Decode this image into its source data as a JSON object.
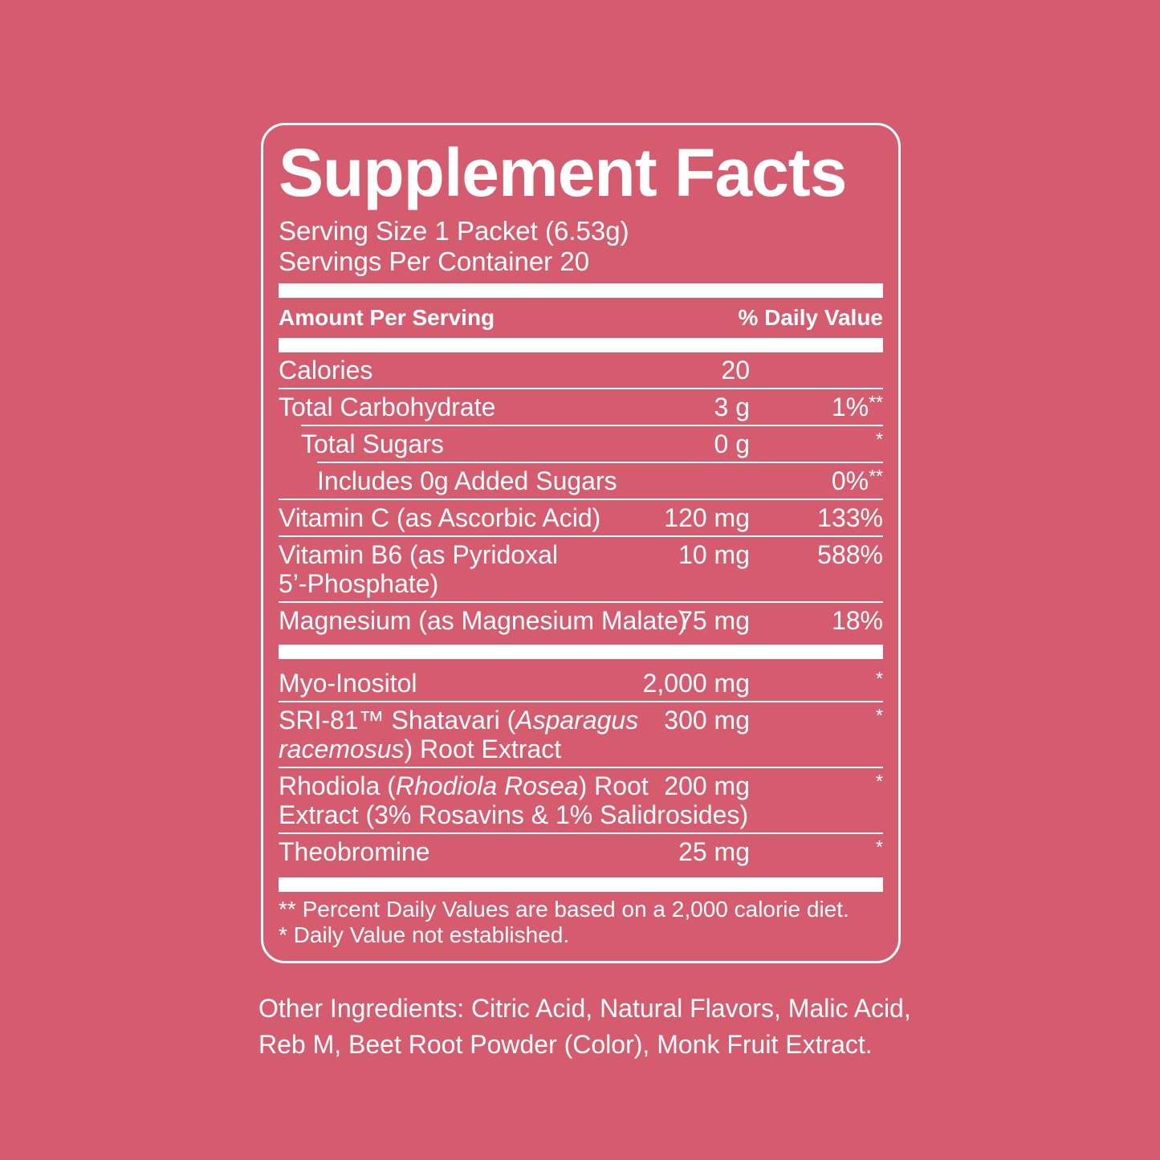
{
  "colors": {
    "background": "#d45c6e",
    "text": "#ffffff",
    "panel_border": "#ffffff"
  },
  "panel": {
    "title": "Supplement Facts",
    "serving_size": "Serving Size 1 Packet (6.53g)",
    "servings_per_container": "Servings Per Container 20",
    "column_headers": {
      "left": "Amount Per Serving",
      "right": "% Daily Value"
    },
    "rows": [
      {
        "type": "item",
        "sep": "none",
        "indent": 0,
        "name": [
          {
            "text": "Calories"
          }
        ],
        "amount": "20",
        "dv": "",
        "dv_sup": ""
      },
      {
        "type": "item",
        "sep": "full",
        "indent": 0,
        "name": [
          {
            "text": "Total Carbohydrate"
          }
        ],
        "amount": "3 g",
        "dv": "1%",
        "dv_sup": "**"
      },
      {
        "type": "item",
        "sep": "indent1",
        "indent": 1,
        "name": [
          {
            "text": "Total Sugars"
          }
        ],
        "amount": "0 g",
        "dv": "",
        "dv_sup": "*"
      },
      {
        "type": "item",
        "sep": "indent2",
        "indent": 2,
        "name": [
          {
            "text": "Includes 0g Added Sugars"
          }
        ],
        "amount": "",
        "dv": "0%",
        "dv_sup": "**"
      },
      {
        "type": "item",
        "sep": "full",
        "indent": 0,
        "name": [
          {
            "text": "Vitamin C (as Ascorbic Acid)"
          }
        ],
        "amount": "120 mg",
        "dv": "133%",
        "dv_sup": ""
      },
      {
        "type": "item",
        "sep": "full",
        "indent": 0,
        "name": [
          {
            "text": "Vitamin B6 (as Pyridoxal\n5’-Phosphate)"
          }
        ],
        "amount": "10 mg",
        "dv": "588%",
        "dv_sup": ""
      },
      {
        "type": "item",
        "sep": "full",
        "indent": 0,
        "name": [
          {
            "text": "Magnesium (as Magnesium Malate)"
          }
        ],
        "amount": "75 mg",
        "dv": "18%",
        "dv_sup": ""
      },
      {
        "type": "thickbar"
      },
      {
        "type": "item",
        "sep": "none",
        "indent": 0,
        "name": [
          {
            "text": "Myo-Inositol"
          }
        ],
        "amount": "2,000 mg",
        "dv": "",
        "dv_sup": "*"
      },
      {
        "type": "item",
        "sep": "full",
        "indent": 0,
        "name": [
          {
            "text": "SRI-81™ Shatavari ("
          },
          {
            "text": "Asparagus\nracemosus",
            "italic": true
          },
          {
            "text": ") Root Extract"
          }
        ],
        "amount": "300 mg",
        "dv": "",
        "dv_sup": "*"
      },
      {
        "type": "item",
        "sep": "full",
        "indent": 0,
        "name": [
          {
            "text": "Rhodiola ("
          },
          {
            "text": "Rhodiola Rosea",
            "italic": true
          },
          {
            "text": ") Root\nExtract (3% Rosavins & 1% Salidrosides)"
          }
        ],
        "amount": "200 mg",
        "dv": "",
        "dv_sup": "*"
      },
      {
        "type": "item",
        "sep": "full",
        "indent": 0,
        "name": [
          {
            "text": "Theobromine"
          }
        ],
        "amount": "25 mg",
        "dv": "",
        "dv_sup": "*"
      }
    ],
    "footnotes": [
      "** Percent Daily Values are based on a 2,000 calorie diet.",
      "* Daily Value not established."
    ]
  },
  "other_ingredients": "Other Ingredients: Citric Acid, Natural Flavors, Malic Acid,\nReb M, Beet Root Powder (Color), Monk Fruit Extract."
}
